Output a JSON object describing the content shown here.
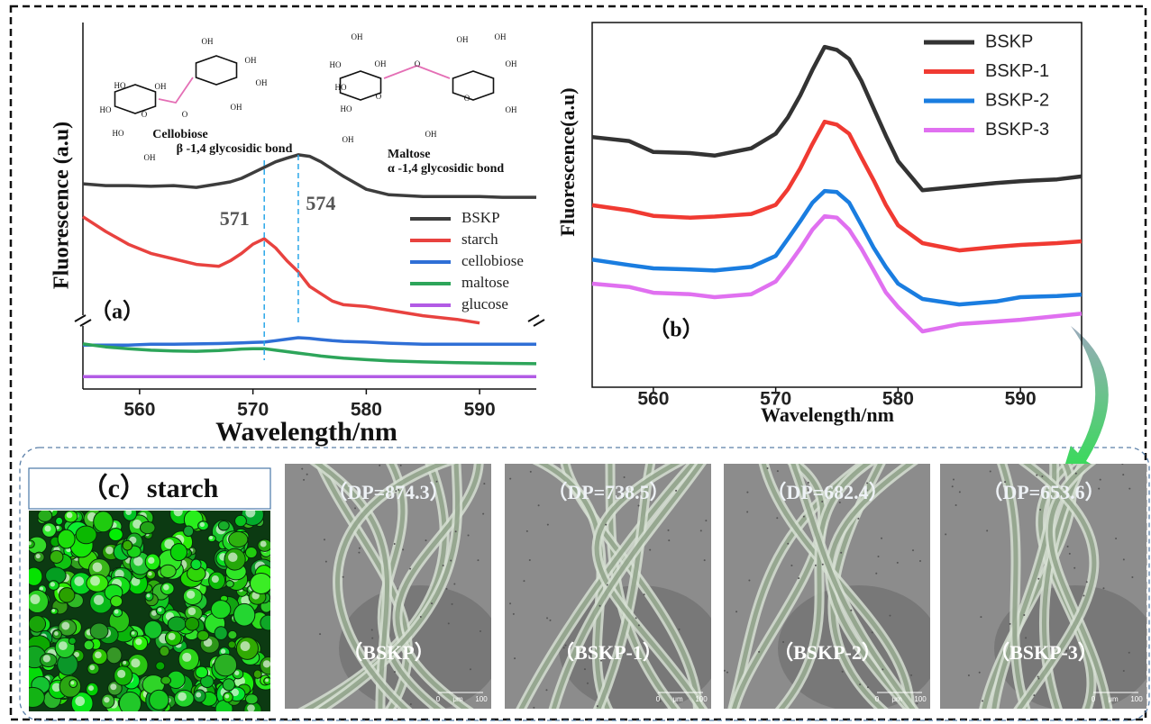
{
  "chart_data": [
    {
      "type": "line",
      "panel_label": "（a）",
      "x_label": "Wavelength/nm",
      "y_label": "Fluorescence (a.u)",
      "x": [
        555,
        557,
        559,
        561,
        563,
        565,
        567,
        568,
        569,
        570,
        571,
        572,
        573,
        574,
        575,
        576,
        577,
        578,
        580,
        582,
        585,
        588,
        590,
        592,
        595
      ],
      "xlim": [
        555,
        595
      ],
      "xticks": [
        560,
        570,
        580,
        590
      ],
      "ylim": [
        0,
        100
      ],
      "grid": false,
      "legend": "center right",
      "peak_lines": [
        571,
        574
      ],
      "structures": [
        {
          "name": "Cellobiose",
          "bond": "β -1,4 glycosidic bond",
          "atoms": [
            "OH",
            "OH",
            "OH",
            "OH",
            "HO",
            "HO",
            "HO",
            "OH",
            "O",
            "O",
            "OH"
          ]
        },
        {
          "name": "Maltose",
          "bond": "α -1,4 glycosidic bond",
          "atoms": [
            "OH",
            "HO",
            "HO",
            "OH",
            "HO",
            "O",
            "OH",
            "OH",
            "OH",
            "OH",
            "O",
            "OH",
            "OH",
            "O"
          ]
        }
      ],
      "series": [
        {
          "name": "BSKP",
          "color": "#3d3d3d",
          "values": [
            56,
            55.5,
            55.5,
            55.3,
            55.5,
            55,
            56,
            56.5,
            57.5,
            59,
            60.5,
            62,
            63,
            63.9,
            63.5,
            62,
            60,
            58,
            54.5,
            53,
            52.5,
            52.5,
            52.5,
            52.3,
            52.3
          ]
        },
        {
          "name": "starch",
          "color": "#e8423f",
          "values": [
            47,
            43,
            39.5,
            37,
            35.5,
            34,
            33.5,
            35,
            37,
            39.5,
            41,
            38.5,
            35,
            32,
            28,
            26,
            24,
            23,
            22.5,
            21.5,
            20,
            19,
            18,
            null,
            null
          ]
        },
        {
          "name": "cellobiose",
          "color": "#2f6fd6",
          "values": [
            12,
            12,
            12,
            12.2,
            12.2,
            12.3,
            12.4,
            12.5,
            12.6,
            12.7,
            12.8,
            13.2,
            13.6,
            14,
            13.8,
            13.5,
            13.2,
            13,
            12.8,
            12.5,
            12.2,
            12.2,
            12.2,
            12.2,
            12.2
          ]
        },
        {
          "name": "maltose",
          "color": "#2da55a",
          "values": [
            12.3,
            11.5,
            11,
            10.6,
            10.4,
            10.3,
            10.5,
            10.7,
            10.9,
            11,
            11,
            10.6,
            10.2,
            9.8,
            9.4,
            9,
            8.7,
            8.4,
            8,
            7.7,
            7.4,
            7.2,
            7.1,
            7,
            6.9
          ]
        },
        {
          "name": "glucose",
          "color": "#b25be5",
          "values": [
            3.4,
            3.4,
            3.4,
            3.4,
            3.4,
            3.4,
            3.4,
            3.4,
            3.4,
            3.4,
            3.4,
            3.4,
            3.4,
            3.4,
            3.4,
            3.4,
            3.4,
            3.4,
            3.4,
            3.4,
            3.4,
            3.4,
            3.4,
            3.4,
            3.4
          ]
        }
      ]
    },
    {
      "type": "line",
      "panel_label": "（b）",
      "x_label": "Wavelength/nm",
      "y_label": "Fluorescence(a.u)",
      "x": [
        555,
        558,
        560,
        563,
        565,
        568,
        570,
        571,
        572,
        573,
        574,
        575,
        576,
        577,
        578,
        579,
        580,
        582,
        585,
        588,
        590,
        593,
        595
      ],
      "xlim": [
        555,
        595
      ],
      "xticks": [
        560,
        570,
        580,
        590
      ],
      "ylim": [
        0,
        100
      ],
      "grid": false,
      "legend": "upper right",
      "series": [
        {
          "name": "BSKP",
          "color": "#333333",
          "values": [
            68.6,
            67.5,
            64.5,
            64.2,
            63.5,
            65.5,
            69.5,
            74,
            80,
            87,
            93.3,
            92.5,
            90,
            84,
            76.5,
            69,
            62,
            54,
            55,
            56,
            56.5,
            57,
            57.8
          ]
        },
        {
          "name": "BSKP-1",
          "color": "#f03a32",
          "values": [
            49.9,
            48.5,
            47,
            46.5,
            46.8,
            47.5,
            50,
            54.3,
            60,
            66.7,
            72.8,
            72,
            69.5,
            63,
            56.8,
            50,
            44.4,
            39.5,
            37.5,
            38.5,
            39,
            39.5,
            40
          ]
        },
        {
          "name": "BSKP-2",
          "color": "#1a7de0",
          "values": [
            35,
            33.5,
            32.6,
            32.3,
            32,
            33,
            36,
            40.7,
            45.5,
            50.6,
            53.8,
            53.5,
            50.6,
            44.5,
            38.3,
            33,
            28.4,
            24.2,
            22.7,
            23.5,
            24.7,
            25,
            25.4
          ]
        },
        {
          "name": "BSKP-3",
          "color": "#e070f0",
          "values": [
            28.4,
            27.5,
            25.9,
            25.5,
            24.7,
            25.5,
            29,
            33.3,
            38,
            43.2,
            46.9,
            46.5,
            43.2,
            38,
            32.1,
            26,
            22,
            15.3,
            17.3,
            18,
            18.5,
            19.5,
            20.2
          ]
        }
      ]
    }
  ],
  "panel_c": {
    "label": "（c）starch",
    "scale": [
      "0",
      "μm",
      "100"
    ],
    "images": [
      {
        "dp": "（DP=874.3）",
        "sample": "（BSKP）"
      },
      {
        "dp": "（DP=738.5）",
        "sample": "（BSKP-1）"
      },
      {
        "dp": "（DP=682.4）",
        "sample": "（BSKP-2）"
      },
      {
        "dp": "（DP=653.6）",
        "sample": "（BSKP-3）"
      }
    ]
  }
}
